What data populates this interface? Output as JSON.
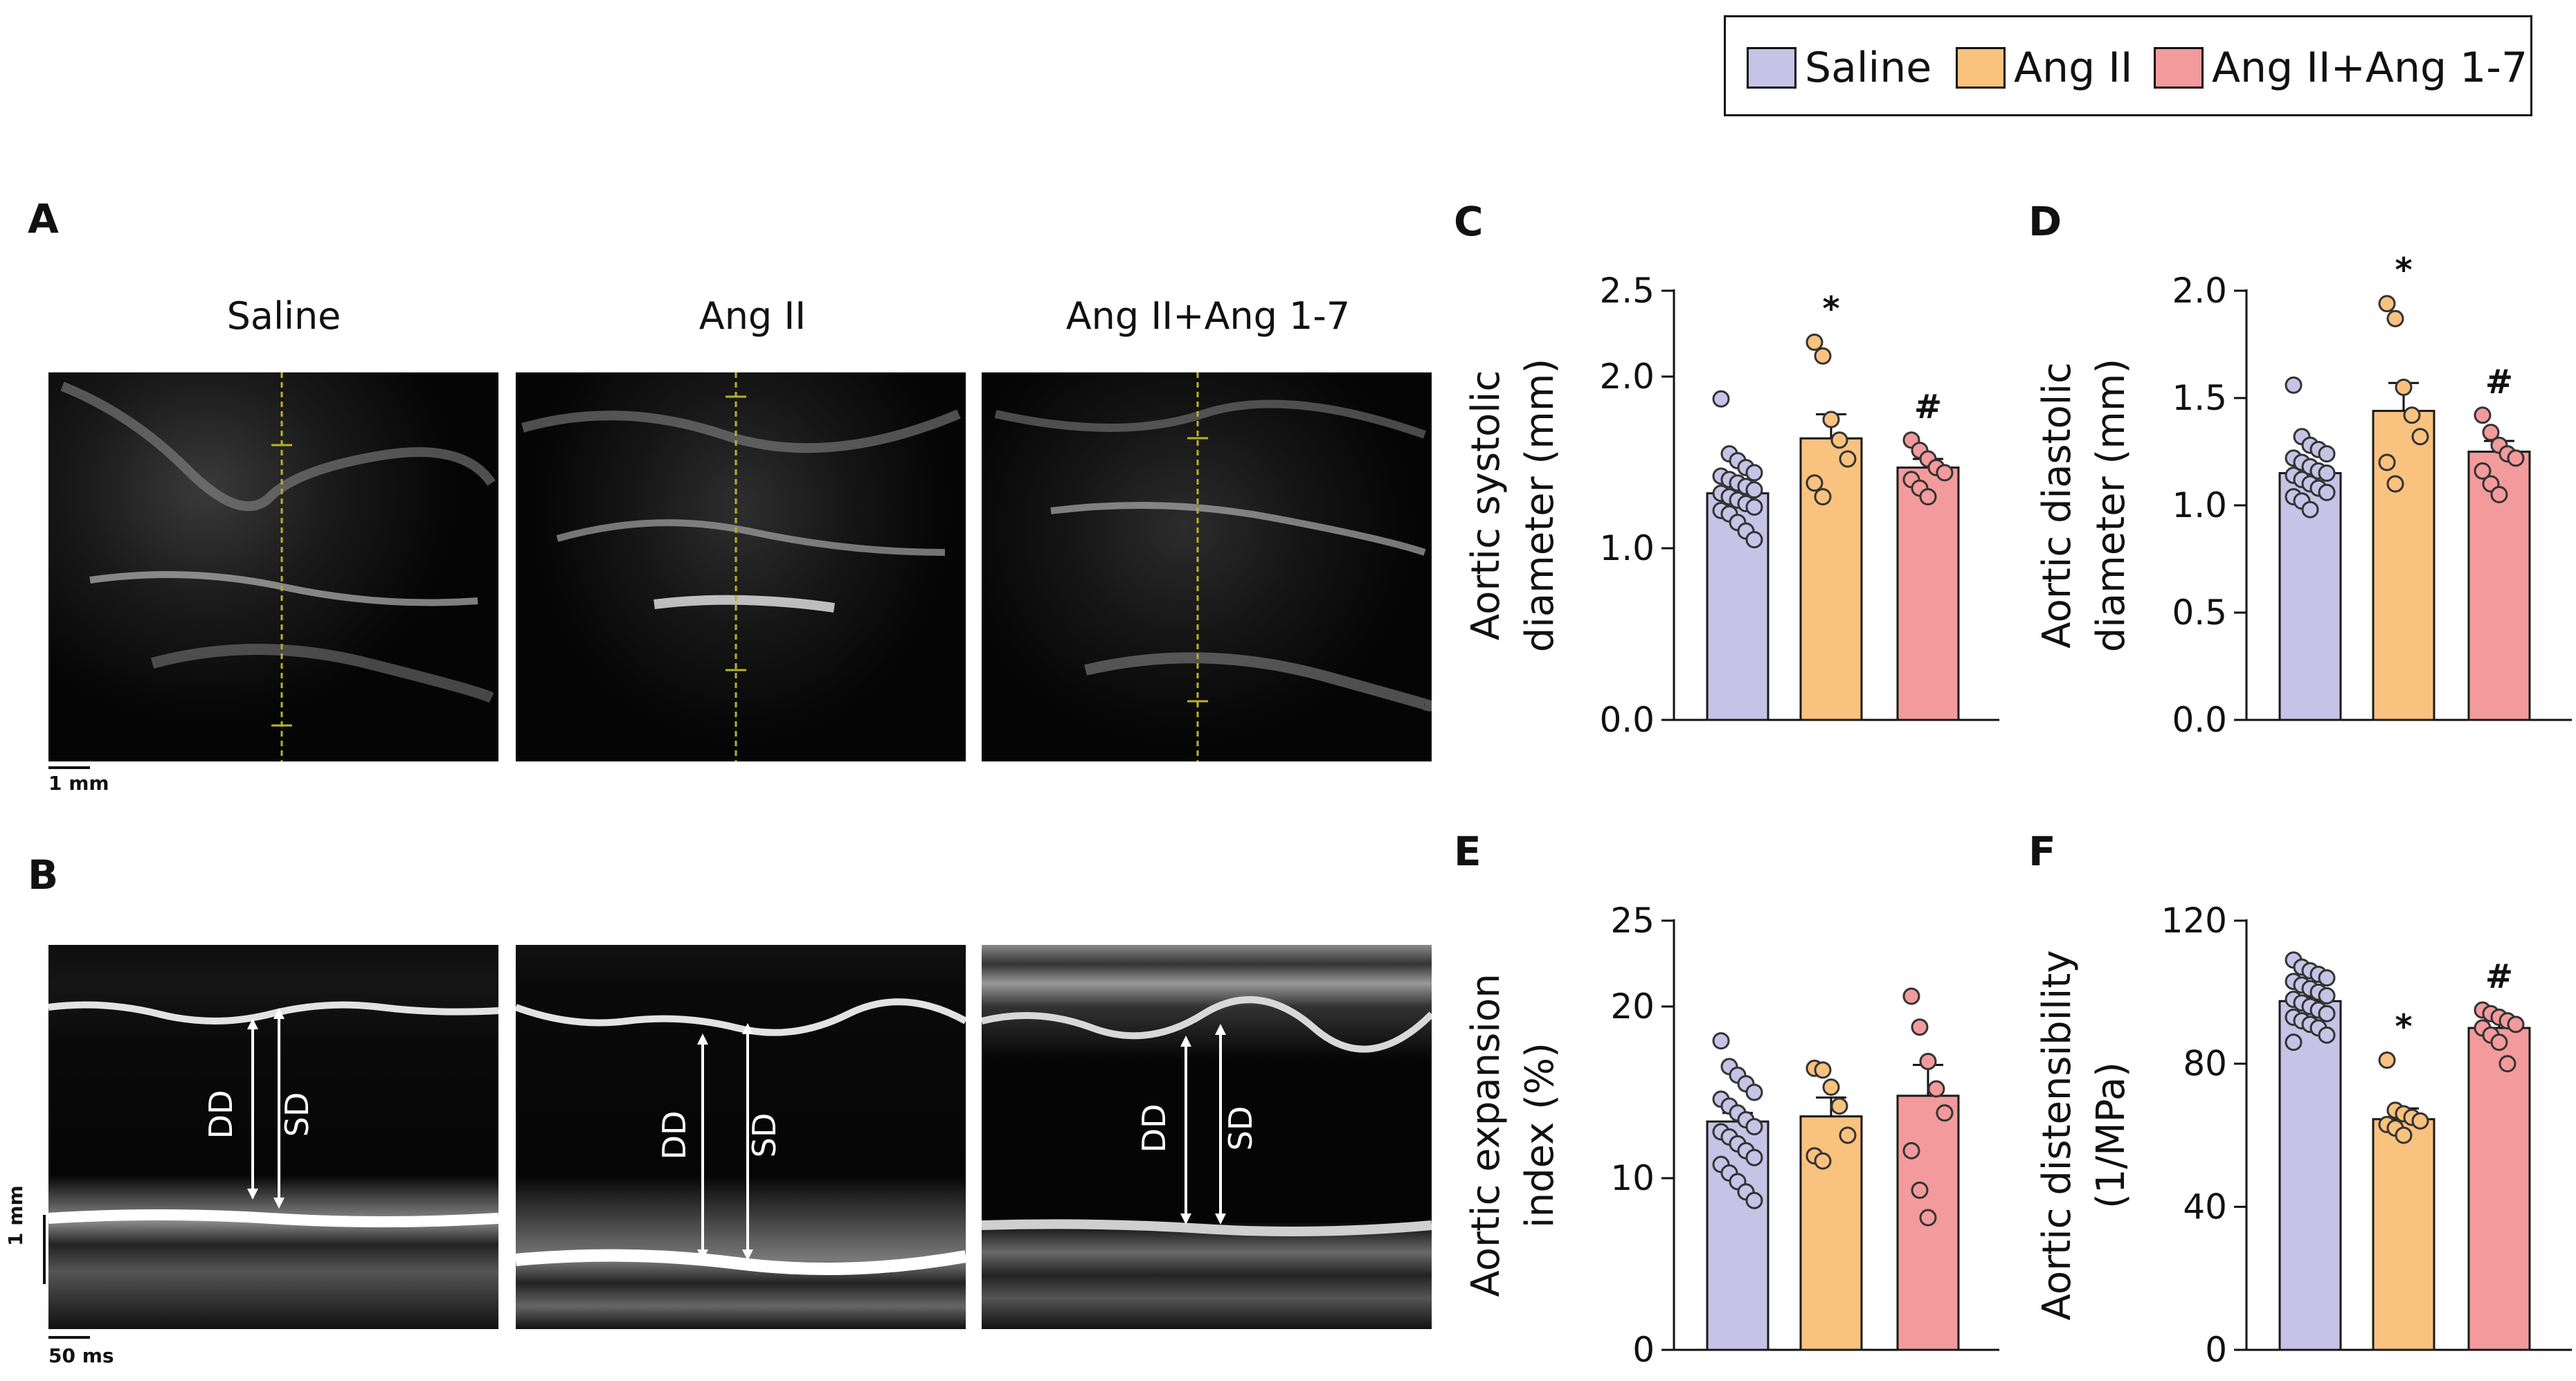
{
  "legend": {
    "items": [
      {
        "label": "Saline",
        "color": "#c7c3e6"
      },
      {
        "label": "Ang II",
        "color": "#f9c27e"
      },
      {
        "label": "Ang II+Ang 1-7",
        "color": "#f39a9c"
      }
    ]
  },
  "panels": {
    "A": {
      "letter": "A",
      "titles": [
        "Saline",
        "Ang II",
        "Ang II+Ang 1-7"
      ],
      "scale": "1 mm"
    },
    "B": {
      "letter": "B",
      "labels": {
        "dd": "DD",
        "sd": "SD"
      },
      "scale_v": "1 mm",
      "scale_h": "50 ms"
    }
  },
  "colors": {
    "saline": "#c7c3e6",
    "angii": "#f9c27e",
    "angii17": "#f39a9c",
    "outline": "#1a1a1a"
  },
  "chart_data": [
    {
      "panel": "C",
      "type": "bar",
      "ylabel": [
        "Aortic systolic",
        "diameter (mm)"
      ],
      "ylim": [
        0,
        2.5
      ],
      "ticks": [
        "0.0",
        "1.0",
        "2.0",
        "2.5"
      ],
      "tick_values": [
        0,
        1.0,
        2.0,
        2.5
      ],
      "categories": [
        "Saline",
        "Ang II",
        "Ang II+Ang 1-7"
      ],
      "values": [
        1.32,
        1.64,
        1.47
      ],
      "sem": [
        0.04,
        0.14,
        0.05
      ],
      "annotations": [
        "",
        "*",
        "#"
      ],
      "points": [
        [
          1.87,
          1.55,
          1.51,
          1.47,
          1.44,
          1.42,
          1.4,
          1.38,
          1.36,
          1.34,
          1.32,
          1.3,
          1.28,
          1.26,
          1.24,
          1.22,
          1.2,
          1.15,
          1.1,
          1.05
        ],
        [
          2.2,
          2.12,
          1.75,
          1.63,
          1.52,
          1.38,
          1.3
        ],
        [
          1.63,
          1.57,
          1.52,
          1.47,
          1.44,
          1.4,
          1.35,
          1.3
        ]
      ]
    },
    {
      "panel": "D",
      "type": "bar",
      "ylabel": [
        "Aortic diastolic",
        "diameter (mm)"
      ],
      "ylim": [
        0,
        2.0
      ],
      "ticks": [
        "0.0",
        "0.5",
        "1.0",
        "1.5",
        "2.0"
      ],
      "tick_values": [
        0,
        0.5,
        1.0,
        1.5,
        2.0
      ],
      "categories": [
        "Saline",
        "Ang II",
        "Ang II+Ang 1-7"
      ],
      "values": [
        1.15,
        1.44,
        1.25
      ],
      "sem": [
        0.03,
        0.13,
        0.05
      ],
      "annotations": [
        "",
        "*",
        "#"
      ],
      "points": [
        [
          1.56,
          1.32,
          1.28,
          1.26,
          1.24,
          1.22,
          1.2,
          1.18,
          1.16,
          1.15,
          1.14,
          1.12,
          1.1,
          1.08,
          1.06,
          1.04,
          1.02,
          0.98
        ],
        [
          1.94,
          1.87,
          1.55,
          1.42,
          1.32,
          1.2,
          1.1
        ],
        [
          1.42,
          1.34,
          1.28,
          1.24,
          1.22,
          1.16,
          1.1,
          1.05
        ]
      ]
    },
    {
      "panel": "E",
      "type": "bar",
      "ylabel": [
        "Aortic expansion",
        "index  (%)"
      ],
      "ylim": [
        0,
        25
      ],
      "ticks": [
        "0",
        "10",
        "20",
        "25"
      ],
      "tick_values": [
        0,
        10,
        20,
        25
      ],
      "categories": [
        "Saline",
        "Ang II",
        "Ang II+Ang 1-7"
      ],
      "values": [
        13.3,
        13.6,
        14.8
      ],
      "sem": [
        0.5,
        1.1,
        1.8
      ],
      "annotations": [
        "",
        "",
        ""
      ],
      "points": [
        [
          18.0,
          16.5,
          16.0,
          15.5,
          15.0,
          14.6,
          14.2,
          13.8,
          13.4,
          13.0,
          12.7,
          12.4,
          12.0,
          11.6,
          11.2,
          10.8,
          10.3,
          9.8,
          9.2,
          8.7
        ],
        [
          16.4,
          16.3,
          15.3,
          14.2,
          12.5,
          11.3,
          11.0
        ],
        [
          20.6,
          18.8,
          16.8,
          15.2,
          13.8,
          11.6,
          9.3,
          7.7
        ]
      ]
    },
    {
      "panel": "F",
      "type": "bar",
      "ylabel": [
        "Aortic distensibility",
        "(1/MPa)"
      ],
      "ylim": [
        0,
        120
      ],
      "ticks": [
        "0",
        "40",
        "80",
        "120"
      ],
      "tick_values": [
        0,
        40,
        80,
        120
      ],
      "categories": [
        "Saline",
        "Ang II",
        "Ang II+Ang 1-7"
      ],
      "values": [
        97.5,
        64.5,
        90.0
      ],
      "sem": [
        1.2,
        3.0,
        2.2
      ],
      "annotations": [
        "",
        "*",
        "#"
      ],
      "points": [
        [
          109,
          107,
          106,
          105,
          104,
          103,
          102,
          101,
          100,
          99,
          98,
          97,
          96,
          95,
          94,
          93,
          92,
          91,
          90,
          88,
          86
        ],
        [
          81,
          67,
          66,
          65,
          64,
          63,
          62,
          60
        ],
        [
          95,
          94,
          93,
          92,
          91,
          90,
          88,
          86,
          80
        ]
      ]
    }
  ]
}
